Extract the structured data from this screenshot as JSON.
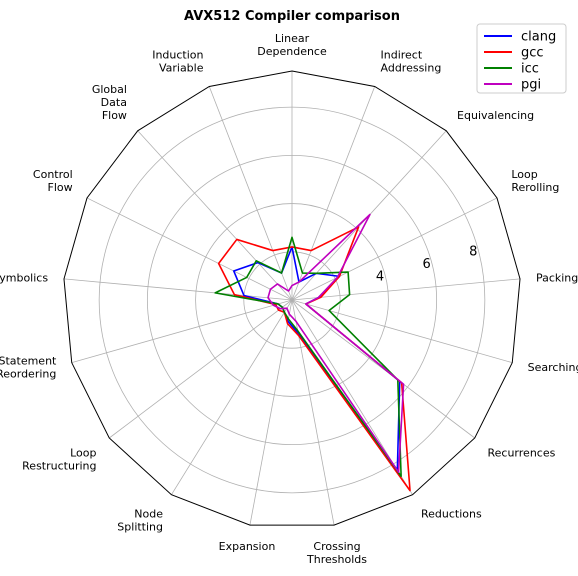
{
  "chart_data": {
    "type": "radar",
    "title": "AVX512 Compiler comparison",
    "axes": [
      "Linear\nDependence",
      "Indirect\nAddressing",
      "Equivalencing",
      "Loop\nRerolling",
      "Packing",
      "Searching",
      "Recurrences",
      "Reductions",
      "Crossing\nThresholds",
      "Expansion",
      "Node\nSplitting",
      "Loop\nRestructuring",
      "Statement\nReordering",
      "Symbolics",
      "Control\nFlow",
      "Global\nData\nFlow",
      "Induction\nVariable"
    ],
    "rmax": 9.5,
    "ticks": [
      4,
      6,
      8
    ],
    "grid_levels": [
      2,
      4,
      6,
      8
    ],
    "grid": true,
    "legend_position": "top-right",
    "series": [
      {
        "name": "clang",
        "color": "#0000ff",
        "values": [
          2.2,
          0.8,
          1.5,
          2.2,
          1.1,
          0.6,
          5.6,
          8.3,
          1.4,
          0.9,
          0.6,
          0.5,
          0.6,
          2.0,
          2.7,
          2.1,
          1.2
        ]
      },
      {
        "name": "gcc",
        "color": "#ff0000",
        "values": [
          2.2,
          2.2,
          4.1,
          2.2,
          1.2,
          0.6,
          5.7,
          9.3,
          1.5,
          1.0,
          0.6,
          0.7,
          0.7,
          2.4,
          3.4,
          3.4,
          2.2
        ]
      },
      {
        "name": "icc",
        "color": "#008000",
        "values": [
          2.6,
          1.2,
          1.5,
          2.6,
          2.4,
          1.6,
          5.5,
          8.6,
          1.3,
          0.8,
          0.6,
          0.5,
          0.6,
          3.2,
          2.1,
          2.2,
          1.2
        ]
      },
      {
        "name": "pgi",
        "color": "#bf00bf",
        "values": [
          0.6,
          0.8,
          4.8,
          2.1,
          1.1,
          0.6,
          5.8,
          8.4,
          0.9,
          0.6,
          0.4,
          0.6,
          0.8,
          1.0,
          1.0,
          0.9,
          0.4
        ]
      }
    ]
  }
}
